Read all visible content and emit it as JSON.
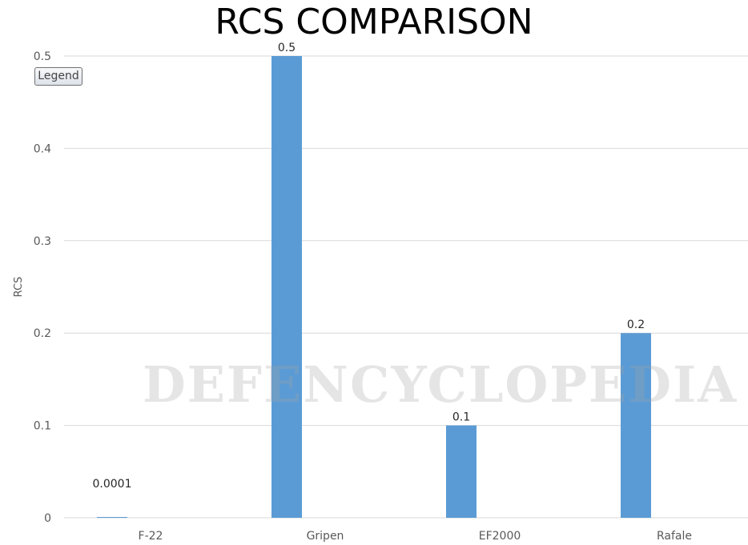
{
  "chart_data": {
    "type": "bar",
    "title": "RCS COMPARISON",
    "xlabel": "",
    "ylabel": "RCS",
    "categories": [
      "F-22",
      "Gripen",
      "EF2000",
      "Rafale"
    ],
    "values": [
      0.0001,
      0.5,
      0.1,
      0.2
    ],
    "data_labels": [
      "0.0001",
      "0.5",
      "0.1",
      "0.2"
    ],
    "ylim": [
      0,
      0.5
    ],
    "yticks": [
      "0",
      "0.1",
      "0.2",
      "0.3",
      "0.4",
      "0.5"
    ],
    "grid": true,
    "bar_color": "#5b9bd5",
    "legend_button": "Legend"
  },
  "watermark": "DEFENCYCLOPEDIA"
}
